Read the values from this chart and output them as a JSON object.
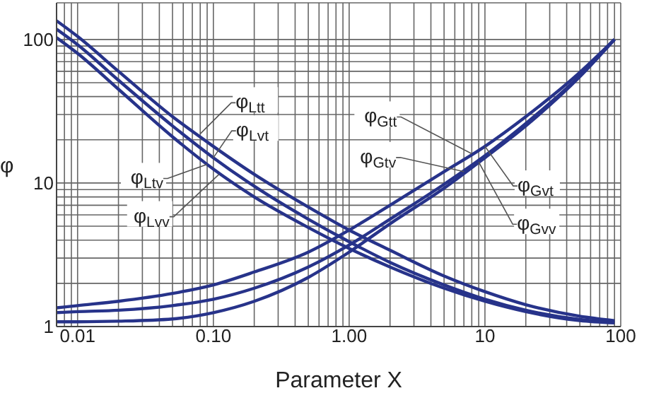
{
  "chart_data": {
    "type": "line",
    "xlabel": "Parameter X",
    "ylabel": "φ",
    "log": "xy",
    "grid": true,
    "legend": false,
    "marker": "none",
    "line_style": "solid",
    "x": [
      0.007,
      0.01,
      0.02,
      0.05,
      0.1,
      0.2,
      0.5,
      1,
      2,
      5,
      10,
      20,
      50,
      90
    ],
    "xlim": [
      0.007,
      100
    ],
    "ylim": [
      1,
      180
    ],
    "xticks": [
      {
        "value": 0.008,
        "label": null
      },
      {
        "value": 0.009,
        "label": null
      },
      {
        "value": 0.01,
        "label": "0.01"
      },
      {
        "value": 0.02,
        "label": null
      },
      {
        "value": 0.03,
        "label": null
      },
      {
        "value": 0.04,
        "label": null
      },
      {
        "value": 0.05,
        "label": null
      },
      {
        "value": 0.06,
        "label": null
      },
      {
        "value": 0.07,
        "label": null
      },
      {
        "value": 0.08,
        "label": null
      },
      {
        "value": 0.09,
        "label": null
      },
      {
        "value": 0.1,
        "label": "0.10"
      },
      {
        "value": 0.2,
        "label": null
      },
      {
        "value": 0.3,
        "label": null
      },
      {
        "value": 0.4,
        "label": null
      },
      {
        "value": 0.5,
        "label": null
      },
      {
        "value": 0.6,
        "label": null
      },
      {
        "value": 0.7,
        "label": null
      },
      {
        "value": 0.8,
        "label": null
      },
      {
        "value": 0.9,
        "label": null
      },
      {
        "value": 1,
        "label": "1.00"
      },
      {
        "value": 2,
        "label": null
      },
      {
        "value": 3,
        "label": null
      },
      {
        "value": 4,
        "label": null
      },
      {
        "value": 5,
        "label": null
      },
      {
        "value": 6,
        "label": null
      },
      {
        "value": 7,
        "label": null
      },
      {
        "value": 8,
        "label": null
      },
      {
        "value": 9,
        "label": null
      },
      10,
      {
        "value": 20,
        "label": null
      },
      {
        "value": 30,
        "label": null
      },
      {
        "value": 40,
        "label": null
      },
      {
        "value": 50,
        "label": null
      },
      {
        "value": 60,
        "label": null
      },
      {
        "value": 70,
        "label": null
      },
      {
        "value": 80,
        "label": null
      },
      {
        "value": 90,
        "label": null
      },
      100
    ],
    "yticks": [
      1,
      {
        "value": 2,
        "label": null
      },
      {
        "value": 3,
        "label": null
      },
      {
        "value": 4,
        "label": null
      },
      {
        "value": 5,
        "label": null
      },
      {
        "value": 6,
        "label": null
      },
      {
        "value": 7,
        "label": null
      },
      {
        "value": 8,
        "label": null
      },
      {
        "value": 9,
        "label": null
      },
      10,
      {
        "value": 20,
        "label": null
      },
      {
        "value": 30,
        "label": null
      },
      {
        "value": 40,
        "label": null
      },
      {
        "value": 50,
        "label": null
      },
      {
        "value": 60,
        "label": null
      },
      {
        "value": 70,
        "label": null
      },
      {
        "value": 80,
        "label": null
      },
      {
        "value": 90,
        "label": null
      },
      100
    ],
    "series": [
      {
        "color": "#27338a",
        "values": [
          135,
          105,
          60,
          29,
          18,
          11.5,
          6.8,
          4.7,
          3.4,
          2.25,
          1.75,
          1.42,
          1.18,
          1.1
        ]
      },
      {
        "color": "#27338a",
        "values": [
          118,
          92,
          52,
          25,
          15,
          9.5,
          5.6,
          3.9,
          2.8,
          1.95,
          1.55,
          1.3,
          1.12,
          1.07
        ]
      },
      {
        "color": "#27338a",
        "values": [
          103,
          80,
          45,
          21,
          12.5,
          8,
          4.9,
          3.5,
          2.6,
          1.85,
          1.5,
          1.27,
          1.1,
          1.06
        ]
      },
      {
        "color": "#27338a",
        "values": [
          1.35,
          1.4,
          1.5,
          1.7,
          1.95,
          2.4,
          3.3,
          4.7,
          7,
          12,
          18,
          29,
          59,
          100
        ]
      },
      {
        "color": "#27338a",
        "values": [
          1.25,
          1.27,
          1.3,
          1.4,
          1.55,
          1.85,
          2.6,
          3.7,
          5.6,
          9.8,
          15.5,
          26,
          56,
          100
        ]
      },
      {
        "color": "#27338a",
        "values": [
          1.08,
          1.08,
          1.09,
          1.13,
          1.25,
          1.5,
          2.2,
          3.3,
          5.2,
          9.2,
          15,
          25,
          55,
          100
        ]
      }
    ],
    "annotations": [
      {
        "text": "φ$_{Ltt}$",
        "x": 0.08,
        "y": 22
      },
      {
        "text": "φ$_{Lvt}$",
        "x": 0.1,
        "y": 15
      },
      {
        "text": "φ$_{Ltv}$",
        "x": 0.09,
        "y": 13.5
      },
      {
        "text": "φ$_{Lvv}$",
        "x": 0.11,
        "y": 11.5
      },
      {
        "text": "φ$_{Gtt}$",
        "x": 8,
        "y": 16
      },
      {
        "text": "φ$_{Gtv}$",
        "x": 7,
        "y": 12
      },
      {
        "text": "φ$_{Gvt}$",
        "x": 10,
        "y": 18
      },
      {
        "text": "φ$_{Gvv}$",
        "x": 9,
        "y": 14
      }
    ]
  }
}
